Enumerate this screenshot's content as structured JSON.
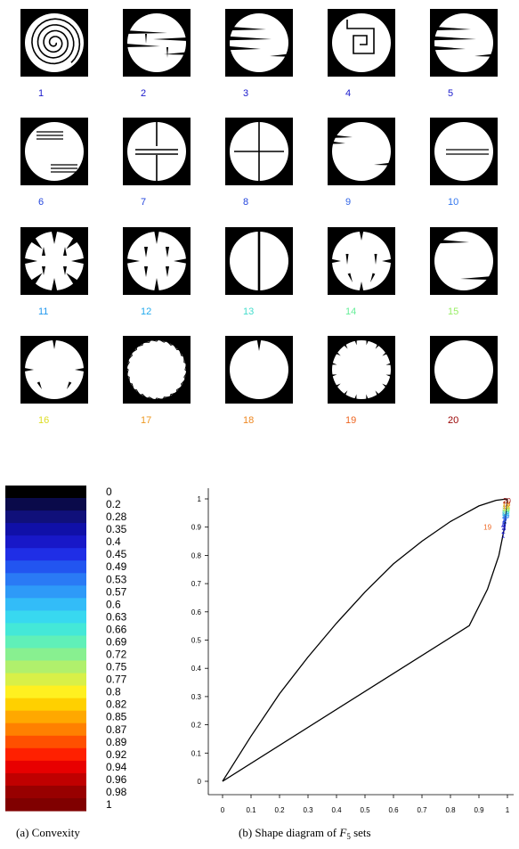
{
  "chart_data": [
    {
      "type": "image-grid",
      "panels": [
        {
          "label": "1",
          "color": "#1a1acc",
          "shape": "spiral"
        },
        {
          "label": "2",
          "color": "#1a1acc",
          "shape": "cuts-both"
        },
        {
          "label": "3",
          "color": "#1a1acc",
          "shape": "cuts-left"
        },
        {
          "label": "4",
          "color": "#1a1acc",
          "shape": "square-spiral"
        },
        {
          "label": "5",
          "color": "#1a1acc",
          "shape": "cuts-left"
        },
        {
          "label": "6",
          "color": "#2244dd",
          "shape": "lines"
        },
        {
          "label": "7",
          "color": "#2244dd",
          "shape": "cross-open"
        },
        {
          "label": "8",
          "color": "#2244dd",
          "shape": "cross"
        },
        {
          "label": "9",
          "color": "#3366e6",
          "shape": "cuts-right"
        },
        {
          "label": "10",
          "color": "#3377ee",
          "shape": "parallel"
        },
        {
          "label": "11",
          "color": "#2299ee",
          "shape": "thorns-8"
        },
        {
          "label": "12",
          "color": "#22aaee",
          "shape": "thorns-4"
        },
        {
          "label": "13",
          "color": "#44ddcc",
          "shape": "vertical-line"
        },
        {
          "label": "14",
          "color": "#66ee99",
          "shape": "thorns-small"
        },
        {
          "label": "15",
          "color": "#99ee66",
          "shape": "two-cuts"
        },
        {
          "label": "16",
          "color": "#dddd22",
          "shape": "notches"
        },
        {
          "label": "17",
          "color": "#ee9922",
          "shape": "rough"
        },
        {
          "label": "18",
          "color": "#ee8822",
          "shape": "single-notch"
        },
        {
          "label": "19",
          "color": "#ee6622",
          "shape": "spiky"
        },
        {
          "label": "20",
          "color": "#990000",
          "shape": "disc"
        }
      ]
    },
    {
      "type": "colorbar",
      "ticks": [
        "0",
        "0.2",
        "0.28",
        "0.35",
        "0.4",
        "0.45",
        "0.49",
        "0.53",
        "0.57",
        "0.6",
        "0.63",
        "0.66",
        "0.69",
        "0.72",
        "0.75",
        "0.77",
        "0.8",
        "0.82",
        "0.85",
        "0.87",
        "0.89",
        "0.92",
        "0.94",
        "0.96",
        "0.98",
        "1"
      ],
      "colors": [
        "#000000",
        "#0a0a4a",
        "#10107a",
        "#1010a8",
        "#1818c8",
        "#1f2ee6",
        "#2255f0",
        "#2a7af5",
        "#2e9af8",
        "#33bcf8",
        "#38d8f0",
        "#44e8d8",
        "#60f0b8",
        "#88f090",
        "#b0f06c",
        "#d8f048",
        "#fff020",
        "#ffd000",
        "#ffa800",
        "#ff8000",
        "#ff5000",
        "#ff2000",
        "#e80000",
        "#c00000",
        "#980000",
        "#800000"
      ],
      "caption": "(a) Convexity"
    },
    {
      "type": "scatter",
      "xlim": [
        0,
        1
      ],
      "ylim": [
        0,
        1
      ],
      "xticks": [
        "0",
        "0.1",
        "0.2",
        "0.3",
        "0.4",
        "0.5",
        "0.6",
        "0.7",
        "0.8",
        "0.9",
        "1"
      ],
      "yticks": [
        "0",
        "0.1",
        "0.2",
        "0.3",
        "0.4",
        "0.5",
        "0.6",
        "0.7",
        "0.8",
        "0.9",
        "1"
      ],
      "boundary_upper": [
        [
          0,
          0
        ],
        [
          0.1,
          0.16
        ],
        [
          0.2,
          0.31
        ],
        [
          0.3,
          0.44
        ],
        [
          0.4,
          0.56
        ],
        [
          0.5,
          0.67
        ],
        [
          0.6,
          0.77
        ],
        [
          0.7,
          0.85
        ],
        [
          0.8,
          0.92
        ],
        [
          0.9,
          0.975
        ],
        [
          0.96,
          0.995
        ],
        [
          1,
          1
        ]
      ],
      "boundary_lower": [
        [
          0,
          0
        ],
        [
          0.866,
          0.551
        ],
        [
          0.93,
          0.68
        ],
        [
          0.97,
          0.8
        ],
        [
          0.99,
          0.9
        ],
        [
          1,
          1
        ]
      ],
      "points": [
        {
          "label": "1",
          "x": 0.985,
          "y": 0.873,
          "color": "#1a1acc"
        },
        {
          "label": "2",
          "x": 0.986,
          "y": 0.887,
          "color": "#1a1acc"
        },
        {
          "label": "3",
          "x": 0.988,
          "y": 0.897,
          "color": "#1a1acc"
        },
        {
          "label": "4",
          "x": 0.985,
          "y": 0.905,
          "color": "#1a1acc"
        },
        {
          "label": "5",
          "x": 0.988,
          "y": 0.912,
          "color": "#1a1acc"
        },
        {
          "label": "6",
          "x": 0.99,
          "y": 0.918,
          "color": "#2244dd"
        },
        {
          "label": "7",
          "x": 0.99,
          "y": 0.925,
          "color": "#2244dd"
        },
        {
          "label": "8",
          "x": 0.992,
          "y": 0.93,
          "color": "#2244dd"
        },
        {
          "label": "9",
          "x": 0.992,
          "y": 0.935,
          "color": "#3366e6"
        },
        {
          "label": "10",
          "x": 0.993,
          "y": 0.94,
          "color": "#3377ee"
        },
        {
          "label": "11",
          "x": 0.993,
          "y": 0.945,
          "color": "#2299ee"
        },
        {
          "label": "12",
          "x": 0.994,
          "y": 0.95,
          "color": "#22aaee"
        },
        {
          "label": "13",
          "x": 0.994,
          "y": 0.955,
          "color": "#44ddcc"
        },
        {
          "label": "14",
          "x": 0.995,
          "y": 0.96,
          "color": "#66ee99"
        },
        {
          "label": "15",
          "x": 0.995,
          "y": 0.965,
          "color": "#99ee66"
        },
        {
          "label": "16",
          "x": 0.996,
          "y": 0.97,
          "color": "#dddd22"
        },
        {
          "label": "17",
          "x": 0.996,
          "y": 0.975,
          "color": "#ee9922"
        },
        {
          "label": "18",
          "x": 0.997,
          "y": 0.982,
          "color": "#ee8822"
        },
        {
          "label": "19",
          "x": 0.93,
          "y": 0.9,
          "color": "#ee6622"
        },
        {
          "label": "20",
          "x": 0.998,
          "y": 0.993,
          "color": "#990000"
        }
      ],
      "caption": "(b) Shape diagram of ",
      "caption_math": "F",
      "caption_sub": "5",
      "caption_tail": " sets"
    }
  ]
}
